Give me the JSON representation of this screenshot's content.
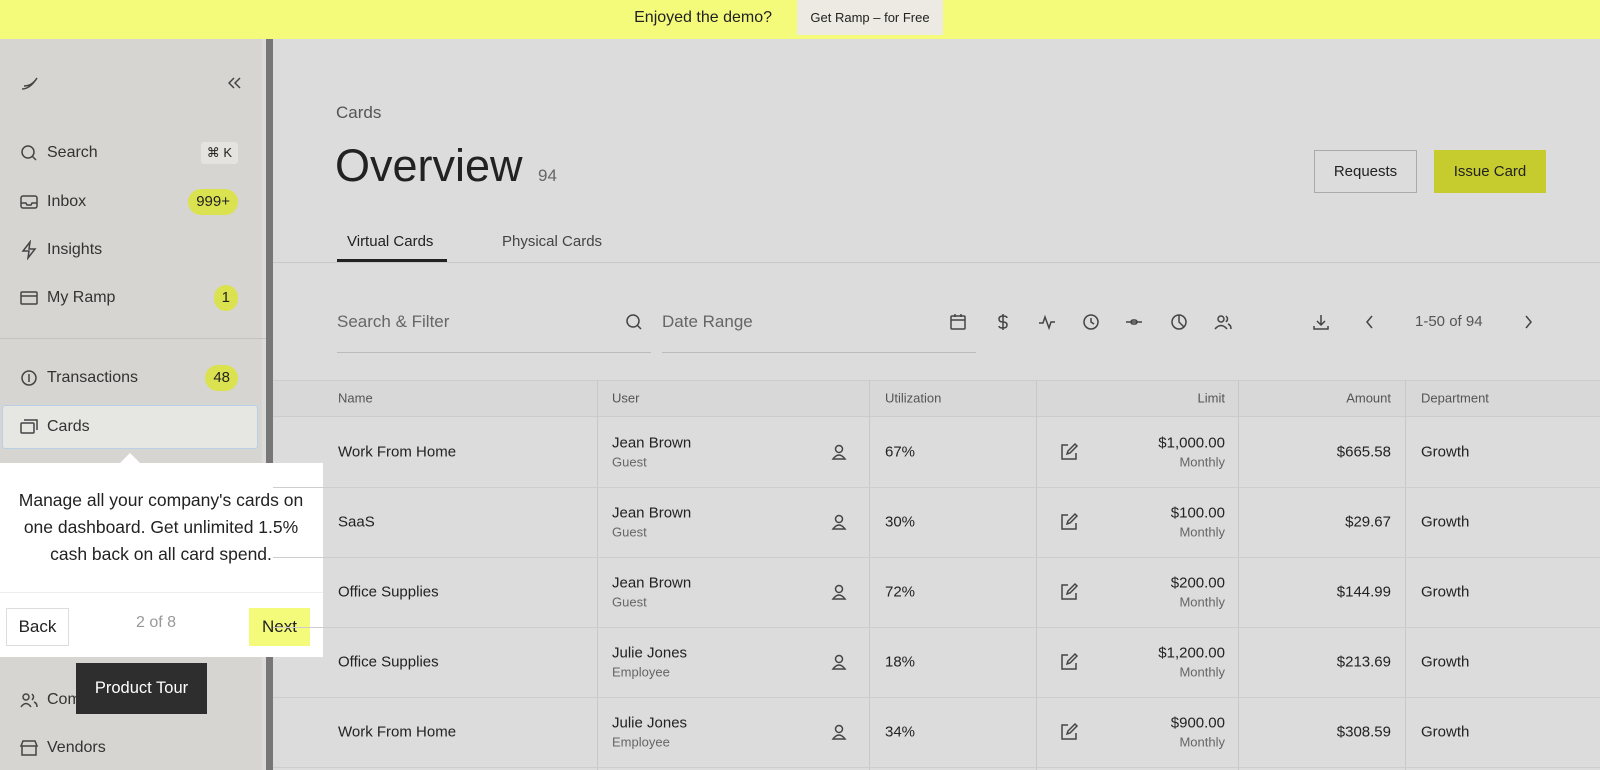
{
  "banner": {
    "text": "Enjoyed the demo?",
    "button": "Get Ramp – for Free"
  },
  "sidebar": {
    "items": [
      {
        "label": "Search",
        "shortcut": "⌘ K"
      },
      {
        "label": "Inbox",
        "badge": "999+"
      },
      {
        "label": "Insights"
      },
      {
        "label": "My Ramp",
        "badge": "1"
      },
      {
        "label": "Transactions",
        "badge": "48"
      },
      {
        "label": "Cards"
      },
      {
        "label": "Com"
      },
      {
        "label": "Vendors"
      }
    ]
  },
  "tooltip": {
    "text": "Manage all your company's cards on one dashboard. Get unlimited 1.5% cash back on all card spend.",
    "back": "Back",
    "step": "2 of 8",
    "next": "Next"
  },
  "product_tour": "Product Tour",
  "header": {
    "breadcrumb": "Cards",
    "title": "Overview",
    "count": "94",
    "requests": "Requests",
    "issue": "Issue Card"
  },
  "tabs": [
    "Virtual Cards",
    "Physical Cards"
  ],
  "filters": {
    "search": "Search & Filter",
    "date": "Date Range",
    "pagination": "1-50 of 94"
  },
  "table": {
    "columns": [
      "Name",
      "User",
      "Utilization",
      "Limit",
      "Amount",
      "Department"
    ],
    "rows": [
      [
        "Work From Home",
        "Jean Brown",
        "Guest",
        "67%",
        "$1,000.00",
        "Monthly",
        "$665.58",
        "Growth"
      ],
      [
        "SaaS",
        "Jean Brown",
        "Guest",
        "30%",
        "$100.00",
        "Monthly",
        "$29.67",
        "Growth"
      ],
      [
        "Office Supplies",
        "Jean Brown",
        "Guest",
        "72%",
        "$200.00",
        "Monthly",
        "$144.99",
        "Growth"
      ],
      [
        "Office Supplies",
        "Julie Jones",
        "Employee",
        "18%",
        "$1,200.00",
        "Monthly",
        "$213.69",
        "Growth"
      ],
      [
        "Work From Home",
        "Julie Jones",
        "Employee",
        "34%",
        "$900.00",
        "Monthly",
        "$308.59",
        "Growth"
      ]
    ]
  }
}
